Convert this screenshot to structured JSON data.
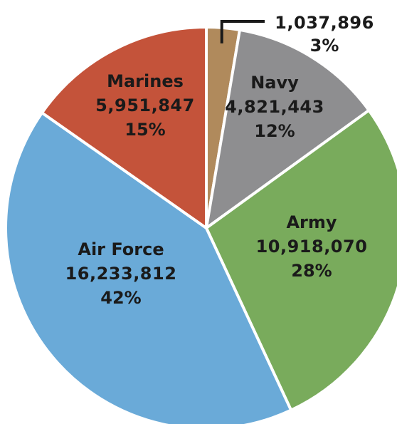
{
  "chart_data": {
    "type": "pie",
    "slices": [
      {
        "label": "",
        "value": 1037896,
        "percent": "3%",
        "value_text": "1,037,896",
        "color": "#b08a5c",
        "label_mode": "leader"
      },
      {
        "label": "Navy",
        "value": 4821443,
        "percent": "12%",
        "value_text": "4,821,443",
        "color": "#8e8e90",
        "label_mode": "inside"
      },
      {
        "label": "Army",
        "value": 10918070,
        "percent": "28%",
        "value_text": "10,918,070",
        "color": "#79ab5c",
        "label_mode": "inside"
      },
      {
        "label": "Air Force",
        "value": 16233812,
        "percent": "42%",
        "value_text": "16,233,812",
        "color": "#6aaad8",
        "label_mode": "inside"
      },
      {
        "label": "Marines",
        "value": 5951847,
        "percent": "15%",
        "value_text": "5,951,847",
        "color": "#c4533a",
        "label_mode": "inside"
      }
    ],
    "start_angle": "12 o'clock",
    "direction": "clockwise",
    "legend": "none"
  }
}
